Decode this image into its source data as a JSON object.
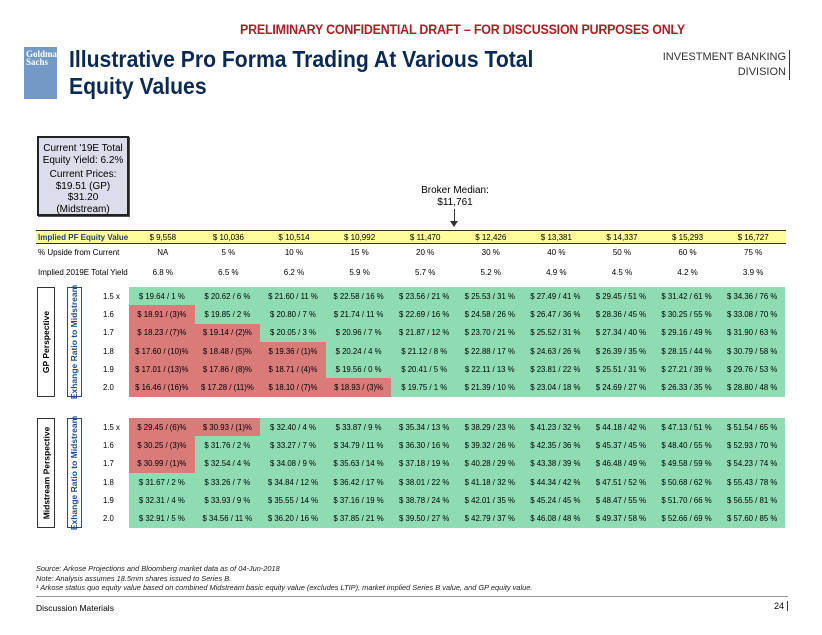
{
  "header": {
    "draft_banner": "PRELIMINARY CONFIDENTIAL DRAFT – FOR DISCUSSION PURPOSES ONLY",
    "logo": "Goldman Sachs",
    "title_line1": "Illustrative Pro Forma Trading At Various Total",
    "title_line2": "Equity Values",
    "division_line1": "INVESTMENT BANKING",
    "division_line2": "DIVISION"
  },
  "current_box": {
    "line1": "Current '19E Total",
    "line2": "Equity Yield: 6.2%",
    "line3": "Current Prices:",
    "line4": "$19.51 (GP)",
    "line5": "$31.20",
    "line6": "(Midstream)"
  },
  "broker": {
    "label": "Broker Median:",
    "value": "$11,761"
  },
  "summary": {
    "equity_label": "Implied PF Equity Value",
    "equity_values": [
      "$ 9,558",
      "$ 10,036",
      "$ 10,514",
      "$ 10,992",
      "$ 11,470",
      "$ 12,426",
      "$ 13,381",
      "$ 14,337",
      "$ 15,293",
      "$ 16,727"
    ],
    "upside_label": "% Upside from Current",
    "upside_values": [
      "NA",
      "5 %",
      "10 %",
      "15 %",
      "20 %",
      "30 %",
      "40 %",
      "50 %",
      "60 %",
      "75 %"
    ],
    "yield_label": "Implied 2019E Total Yield",
    "yield_values": [
      "6.8 %",
      "6.5 %",
      "6.2 %",
      "5.9 %",
      "5.7 %",
      "5.2 %",
      "4.9 %",
      "4.5 %",
      "4.2 %",
      "3.9 %"
    ]
  },
  "gp": {
    "perspective_label": "GP Perspective",
    "axis_label": "Exhange Ratio to Midstream",
    "rows": [
      {
        "ratio": "1.5 x",
        "cells": [
          "$ 19.64 / 1 %",
          "$ 20.62 / 6 %",
          "$ 21.60 / 11 %",
          "$ 22.58 / 16 %",
          "$ 23.56 / 21 %",
          "$ 25.53 / 31 %",
          "$ 27.49 / 41 %",
          "$ 29.45 / 51 %",
          "$ 31.42 / 61 %",
          "$ 34.36 / 76 %"
        ]
      },
      {
        "ratio": "1.6",
        "cells": [
          "$ 18.91 / (3)%",
          "$ 19.85 / 2 %",
          "$ 20.80 / 7 %",
          "$ 21.74 / 11 %",
          "$ 22.69 / 16 %",
          "$ 24.58 / 26 %",
          "$ 26.47 / 36 %",
          "$ 28.36 / 45 %",
          "$ 30.25 / 55 %",
          "$ 33.08 / 70 %"
        ]
      },
      {
        "ratio": "1.7",
        "cells": [
          "$ 18.23 / (7)%",
          "$ 19.14 / (2)%",
          "$ 20.05 / 3 %",
          "$ 20.96 / 7 %",
          "$ 21.87 / 12 %",
          "$ 23.70 / 21 %",
          "$ 25.52 / 31 %",
          "$ 27.34 / 40 %",
          "$ 29.16 / 49 %",
          "$ 31.90 / 63 %"
        ]
      },
      {
        "ratio": "1.8",
        "cells": [
          "$ 17.60 / (10)%",
          "$ 18.48 / (5)%",
          "$ 19.36 / (1)%",
          "$ 20.24 / 4 %",
          "$ 21.12 / 8 %",
          "$ 22.88 / 17 %",
          "$ 24.63 / 26 %",
          "$ 26.39 / 35 %",
          "$ 28.15 / 44 %",
          "$ 30.79 / 58 %"
        ]
      },
      {
        "ratio": "1.9",
        "cells": [
          "$ 17.01 / (13)%",
          "$ 17.86 / (8)%",
          "$ 18.71 / (4)%",
          "$ 19.56 / 0 %",
          "$ 20.41 / 5 %",
          "$ 22.11 / 13 %",
          "$ 23.81 / 22 %",
          "$ 25.51 / 31 %",
          "$ 27.21 / 39 %",
          "$ 29.76 / 53 %"
        ]
      },
      {
        "ratio": "2.0",
        "cells": [
          "$ 16.46 / (16)%",
          "$ 17.28 / (11)%",
          "$ 18.10 / (7)%",
          "$ 18.93 / (3)%",
          "$ 19.75 / 1 %",
          "$ 21.39 / 10 %",
          "$ 23.04 / 18 %",
          "$ 24.69 / 27 %",
          "$ 26.33 / 35 %",
          "$ 28.80 / 48 %"
        ]
      }
    ]
  },
  "midstream": {
    "perspective_label": "Midstream Perspective",
    "axis_label": "Exhange Ratio to Midstream",
    "rows": [
      {
        "ratio": "1.5 x",
        "cells": [
          "$ 29.45 / (6)%",
          "$ 30.93 / (1)%",
          "$ 32.40 / 4 %",
          "$ 33.87 / 9 %",
          "$ 35.34 / 13 %",
          "$ 38.29 / 23 %",
          "$ 41.23 / 32 %",
          "$ 44.18 / 42 %",
          "$ 47.13 / 51 %",
          "$ 51.54 / 65 %"
        ]
      },
      {
        "ratio": "1.6",
        "cells": [
          "$ 30.25 / (3)%",
          "$ 31.76 / 2 %",
          "$ 33.27 / 7 %",
          "$ 34.79 / 11 %",
          "$ 36.30 / 16 %",
          "$ 39.32 / 26 %",
          "$ 42.35 / 36 %",
          "$ 45.37 / 45 %",
          "$ 48.40 / 55 %",
          "$ 52.93 / 70 %"
        ]
      },
      {
        "ratio": "1.7",
        "cells": [
          "$ 30.99 / (1)%",
          "$ 32.54 / 4 %",
          "$ 34.08 / 9 %",
          "$ 35.63 / 14 %",
          "$ 37.18 / 19 %",
          "$ 40.28 / 29 %",
          "$ 43.38 / 39 %",
          "$ 46.48 / 49 %",
          "$ 49.58 / 59 %",
          "$ 54.23 / 74 %"
        ]
      },
      {
        "ratio": "1.8",
        "cells": [
          "$ 31.67 / 2 %",
          "$ 33.26 / 7 %",
          "$ 34.84 / 12 %",
          "$ 36.42 / 17 %",
          "$ 38.01 / 22 %",
          "$ 41.18 / 32 %",
          "$ 44.34 / 42 %",
          "$ 47.51 / 52 %",
          "$ 50.68 / 62 %",
          "$ 55.43 / 78 %"
        ]
      },
      {
        "ratio": "1.9",
        "cells": [
          "$ 32.31 / 4 %",
          "$ 33.93 / 9 %",
          "$ 35.55 / 14 %",
          "$ 37.16 / 19 %",
          "$ 38.78 / 24 %",
          "$ 42.01 / 35 %",
          "$ 45.24 / 45 %",
          "$ 48.47 / 55 %",
          "$ 51.70 / 66 %",
          "$ 56.55 / 81 %"
        ]
      },
      {
        "ratio": "2.0",
        "cells": [
          "$ 32.91 / 5 %",
          "$ 34.56 / 11 %",
          "$ 36.20 / 16 %",
          "$ 37.85 / 21 %",
          "$ 39.50 / 27 %",
          "$ 42.79 / 37 %",
          "$ 46.08 / 48 %",
          "$ 49.37 / 58 %",
          "$ 52.66 / 69 %",
          "$ 57.60 / 85 %"
        ]
      }
    ]
  },
  "colors": {
    "positive": "#8fdcb3",
    "negative": "#d97b79",
    "highlight": "#fdfd9a"
  },
  "notes": {
    "source": "Source: Arkose Projections and Bloomberg market data as of 04-Jun-2018",
    "note": "Note: Analysis assumes 18.5mm shares issued to Series B.",
    "footnote": "¹ Arkose status quo equity value based on combined Midstream basic equity value (excludes LTIP), market implied Series B value, and GP equity value."
  },
  "footer": {
    "label": "Discussion Materials",
    "page": "24"
  }
}
